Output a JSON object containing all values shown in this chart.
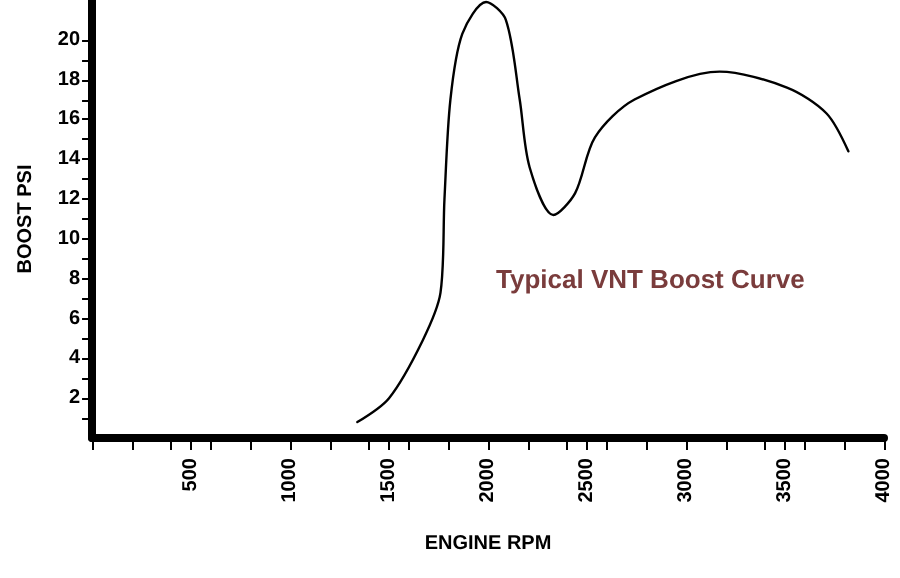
{
  "chart_data": {
    "type": "line",
    "xlabel": "ENGINE RPM",
    "ylabel": "BOOST PSI",
    "annotations": [
      "Typical VNT Boost Curve"
    ],
    "x": [
      1340,
      1500,
      1670,
      1760,
      1780,
      1810,
      1870,
      1990,
      2090,
      2160,
      2210,
      2330,
      2440,
      2540,
      2740,
      3170,
      3510,
      3710,
      3820
    ],
    "series": [
      {
        "color": "#000000",
        "values": [
          0.8,
          2.0,
          4.9,
          7.3,
          12.0,
          17.0,
          20.3,
          21.9,
          21.0,
          17.0,
          13.6,
          11.2,
          12.3,
          15.1,
          17.0,
          18.4,
          17.6,
          16.3,
          14.4
        ]
      }
    ],
    "xlim": [
      0,
      4000
    ],
    "xticks": [
      {
        "value": 0,
        "label": null
      },
      {
        "value": 200,
        "label": null
      },
      {
        "value": 400,
        "label": null
      },
      500,
      {
        "value": 600,
        "label": null
      },
      {
        "value": 800,
        "label": null
      },
      1000,
      {
        "value": 1200,
        "label": null
      },
      {
        "value": 1400,
        "label": null
      },
      1500,
      {
        "value": 1600,
        "label": null
      },
      {
        "value": 1800,
        "label": null
      },
      2000,
      {
        "value": 2200,
        "label": null
      },
      {
        "value": 2400,
        "label": null
      },
      2500,
      {
        "value": 2600,
        "label": null
      },
      {
        "value": 2800,
        "label": null
      },
      3000,
      {
        "value": 3200,
        "label": null
      },
      {
        "value": 3400,
        "label": null
      },
      3500,
      {
        "value": 3600,
        "label": null
      },
      {
        "value": 3800,
        "label": null
      },
      4000
    ],
    "ylim": [
      0,
      22
    ],
    "yticks": [
      {
        "value": 1,
        "label": null
      },
      2,
      {
        "value": 3,
        "label": null
      },
      4,
      {
        "value": 5,
        "label": null
      },
      6,
      {
        "value": 7,
        "label": null
      },
      8,
      {
        "value": 9,
        "label": null
      },
      10,
      {
        "value": 11,
        "label": null
      },
      12,
      {
        "value": 13,
        "label": null
      },
      14,
      {
        "value": 15,
        "label": null
      },
      16,
      {
        "value": 17,
        "label": null
      },
      18,
      {
        "value": 19,
        "label": null
      },
      20
    ],
    "grid": false,
    "marker": "none",
    "line_style": "solid"
  }
}
